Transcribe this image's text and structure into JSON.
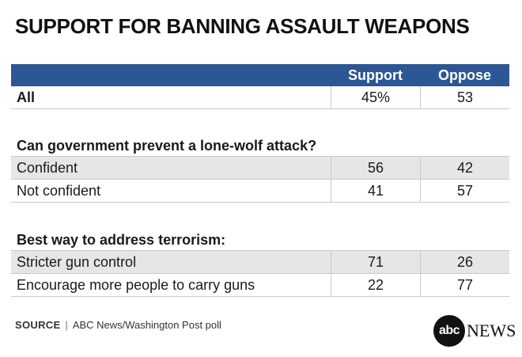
{
  "title": "SUPPORT FOR BANNING ASSAULT WEAPONS",
  "columns": [
    "Support",
    "Oppose"
  ],
  "overall": {
    "label": "All",
    "support": "45%",
    "oppose": "53"
  },
  "sections": [
    {
      "heading": "Can government prevent a lone-wolf attack?",
      "rows": [
        {
          "label": "Confident",
          "support": "56",
          "oppose": "42"
        },
        {
          "label": "Not confident",
          "support": "41",
          "oppose": "57"
        }
      ]
    },
    {
      "heading": "Best way to address terrorism:",
      "rows": [
        {
          "label": "Stricter gun control",
          "support": "71",
          "oppose": "26"
        },
        {
          "label": "Encourage more people to carry guns",
          "support": "22",
          "oppose": "77"
        }
      ]
    }
  ],
  "source": {
    "label": "SOURCE",
    "separator": "|",
    "text": "ABC News/Washington Post poll"
  },
  "logo": {
    "mark": "abc",
    "word": "NEWS"
  },
  "colors": {
    "header": "#2c5694",
    "shaded_row": "#e6e6e6"
  },
  "chart_data": {
    "type": "table",
    "title": "SUPPORT FOR BANNING ASSAULT WEAPONS",
    "columns": [
      "Support",
      "Oppose"
    ],
    "rows": [
      {
        "group": "",
        "label": "All",
        "values": [
          45,
          53
        ]
      },
      {
        "group": "Can government prevent a lone-wolf attack?",
        "label": "Confident",
        "values": [
          56,
          42
        ]
      },
      {
        "group": "Can government prevent a lone-wolf attack?",
        "label": "Not confident",
        "values": [
          41,
          57
        ]
      },
      {
        "group": "Best way to address terrorism:",
        "label": "Stricter gun control",
        "values": [
          71,
          26
        ]
      },
      {
        "group": "Best way to address terrorism:",
        "label": "Encourage more people to carry guns",
        "values": [
          22,
          77
        ]
      }
    ]
  }
}
